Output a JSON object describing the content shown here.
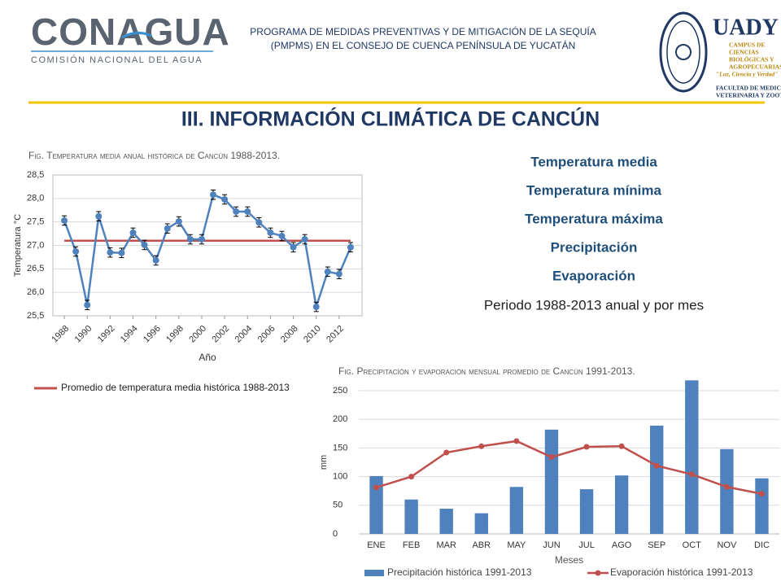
{
  "header": {
    "program": [
      "PROGRAMA DE MEDIDAS PREVENTIVAS Y DE MITIGACIÓN DE LA SEQUÍA",
      "(PMPMS) EN EL CONSEJO DE CUENCA PENÍNSULA DE YUCATÁN"
    ],
    "left_logo": {
      "name": "CONAGUA",
      "subtitle": "COMISIÓN NACIONAL DEL AGUA"
    },
    "right_logo": {
      "name": "UADY",
      "lines": [
        "CAMPUS DE",
        "CIENCIAS",
        "BIOLÓGICAS Y",
        "AGROPECUARIAS",
        "\"Luz, Ciencia y Verdad\"",
        "FACULTAD DE MEDICINA",
        "VETERINARIA Y ZOOTECNIA"
      ]
    }
  },
  "section_title": "III. INFORMACIÓN CLIMÁTICA DE CANCÚN",
  "topics": [
    "Temperatura media",
    "Temperatura mínima",
    "Temperatura máxima",
    "Precipitación",
    "Evaporación"
  ],
  "period": "Periodo 1988-2013 anual y por mes",
  "chart_data": [
    {
      "type": "line",
      "title": "Fig. Temperatura media anual histórica de Cancún 1988-2013.",
      "xlabel": "Año",
      "ylabel": "Temperatura °C",
      "x": [
        1988,
        1989,
        1990,
        1991,
        1992,
        1993,
        1994,
        1995,
        1996,
        1997,
        1998,
        1999,
        2000,
        2001,
        2002,
        2003,
        2004,
        2005,
        2006,
        2007,
        2008,
        2009,
        2010,
        2011,
        2012,
        2013
      ],
      "xlim": [
        1987,
        2014
      ],
      "xticks": [
        1988,
        1990,
        1992,
        1994,
        1996,
        1998,
        2000,
        2002,
        2004,
        2006,
        2008,
        2010,
        2012
      ],
      "ylim": [
        25.5,
        28.5
      ],
      "yticks": [
        {
          "value": 25.5,
          "label": "25,5"
        },
        {
          "value": 26,
          "label": "26,0"
        },
        {
          "value": 26.5,
          "label": "26,5"
        },
        {
          "value": 27,
          "label": "27,0"
        },
        {
          "value": 27.5,
          "label": "27,5"
        },
        {
          "value": 28,
          "label": "28,0"
        },
        {
          "value": 28.5,
          "label": "28,5"
        }
      ],
      "grid": true,
      "series": [
        {
          "color": "#4f81bd",
          "markers": true,
          "values": [
            27.53,
            26.87,
            25.73,
            27.62,
            26.85,
            26.84,
            27.27,
            27.01,
            26.68,
            27.36,
            27.51,
            27.13,
            27.13,
            28.08,
            27.98,
            27.72,
            27.72,
            27.49,
            27.27,
            27.2,
            26.96,
            27.13,
            25.69,
            26.44,
            26.39,
            26.96
          ],
          "errors": [
            0.1,
            0.1,
            0.1,
            0.1,
            0.1,
            0.1,
            0.1,
            0.1,
            0.1,
            0.1,
            0.1,
            0.1,
            0.1,
            0.1,
            0.1,
            0.1,
            0.1,
            0.1,
            0.1,
            0.1,
            0.1,
            0.1,
            0.1,
            0.1,
            0.1,
            0.1
          ]
        },
        {
          "name": "Promedio de temperatura media histórica 1988-2013",
          "color": "#c0504d",
          "markers": false,
          "values": [
            27.1,
            27.1,
            27.1,
            27.1,
            27.1,
            27.1,
            27.1,
            27.1,
            27.1,
            27.1,
            27.1,
            27.1,
            27.1,
            27.1,
            27.1,
            27.1,
            27.1,
            27.1,
            27.1,
            27.1,
            27.1,
            27.1,
            27.1,
            27.1,
            27.1,
            27.1
          ]
        }
      ]
    },
    {
      "type": "bar",
      "title": "Fig. Precipitación y evaporación mensual promedio de Cancún 1991-2013.",
      "xlabel": "Meses",
      "ylabel": "mm",
      "categories": [
        "ENE",
        "FEB",
        "MAR",
        "ABR",
        "MAY",
        "JUN",
        "JUL",
        "AGO",
        "SEP",
        "OCT",
        "NOV",
        "DIC"
      ],
      "ylim": [
        0,
        250
      ],
      "yticks": [
        0,
        50,
        100,
        150,
        200,
        250
      ],
      "grid": true,
      "series": [
        {
          "name": "Precipitación histórica 1991-2013",
          "type": "bar",
          "color": "#4f81bd",
          "values": [
            101,
            60,
            44,
            36,
            82,
            182,
            78,
            102,
            189,
            268,
            148,
            97
          ]
        },
        {
          "name": "Evaporación histórica 1991-2013",
          "type": "line",
          "color": "#c0504d",
          "values": [
            81,
            100,
            142,
            153,
            162,
            134,
            152,
            153,
            119,
            104,
            82,
            70
          ]
        }
      ]
    }
  ]
}
